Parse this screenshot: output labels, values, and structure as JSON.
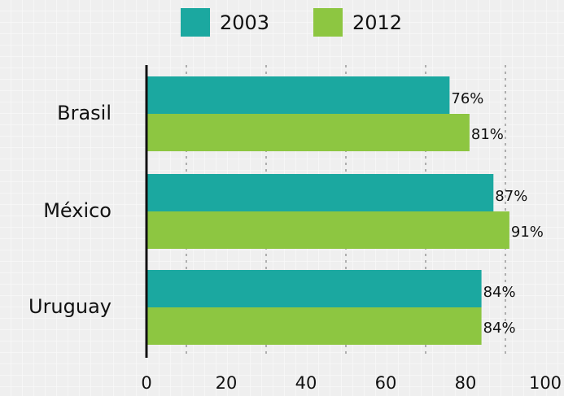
{
  "chart_data": {
    "type": "hbar",
    "categories": [
      "Brasil",
      "México",
      "Uruguay"
    ],
    "series": [
      {
        "name": "2003",
        "color": "#1ba8a0",
        "values": [
          76,
          87,
          84
        ],
        "value_labels": [
          "76%",
          "87%",
          "84%"
        ]
      },
      {
        "name": "2012",
        "color": "#8dc641",
        "values": [
          81,
          91,
          84
        ],
        "value_labels": [
          "81%",
          "91%",
          "84%"
        ]
      }
    ],
    "xlim": [
      0,
      100
    ],
    "xticks": [
      0,
      20,
      40,
      60,
      80,
      100
    ],
    "grid_lines": [
      10,
      30,
      50,
      70,
      90
    ],
    "legend": "top"
  }
}
